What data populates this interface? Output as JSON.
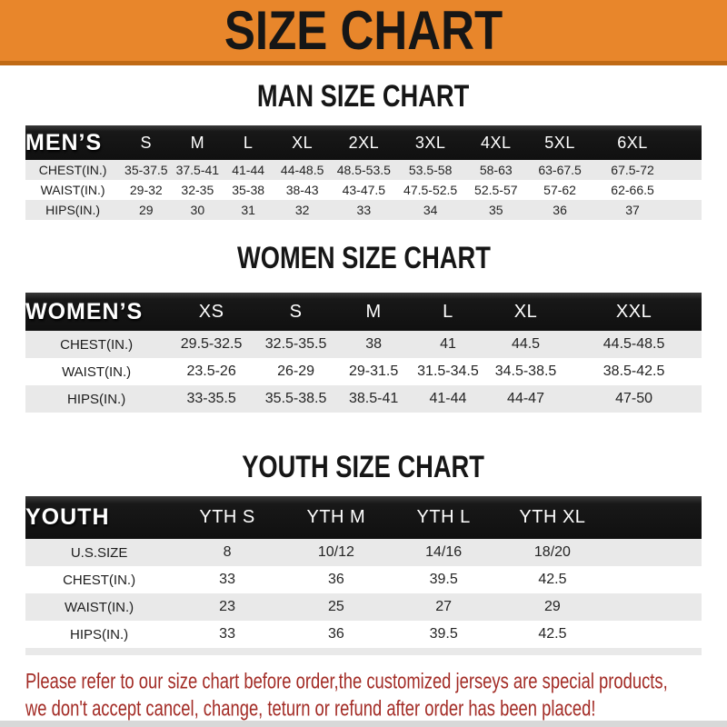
{
  "banner": {
    "title": "SIZE CHART"
  },
  "sections": [
    {
      "heading": "MAN SIZE CHART",
      "table": {
        "header_label": "MEN’S",
        "columns": [
          "S",
          "M",
          "L",
          "XL",
          "2XL",
          "3XL",
          "4XL",
          "5XL",
          "6XL"
        ],
        "rows": [
          {
            "label": "CHEST(IN.)",
            "values": [
              "35-37.5",
              "37.5-41",
              "41-44",
              "44-48.5",
              "48.5-53.5",
              "53.5-58",
              "58-63",
              "63-67.5",
              "67.5-72"
            ]
          },
          {
            "label": "WAIST(IN.)",
            "values": [
              "29-32",
              "32-35",
              "35-38",
              "38-43",
              "43-47.5",
              "47.5-52.5",
              "52.5-57",
              "57-62",
              "62-66.5"
            ]
          },
          {
            "label": "HIPS(IN.)",
            "values": [
              "29",
              "30",
              "31",
              "32",
              "33",
              "34",
              "35",
              "36",
              "37"
            ]
          }
        ]
      }
    },
    {
      "heading": "WOMEN SIZE CHART",
      "table": {
        "header_label": "WOMEN’S",
        "columns": [
          "XS",
          "S",
          "M",
          "L",
          "XL",
          "XXL"
        ],
        "rows": [
          {
            "label": "CHEST(IN.)",
            "values": [
              "29.5-32.5",
              "32.5-35.5",
              "38",
              "41",
              "44.5",
              "44.5-48.5"
            ]
          },
          {
            "label": "WAIST(IN.)",
            "values": [
              "23.5-26",
              "26-29",
              "29-31.5",
              "31.5-34.5",
              "34.5-38.5",
              "38.5-42.5"
            ]
          },
          {
            "label": "HIPS(IN.)",
            "values": [
              "33-35.5",
              "35.5-38.5",
              "38.5-41",
              "41-44",
              "44-47",
              "47-50"
            ]
          }
        ]
      }
    },
    {
      "heading": "YOUTH SIZE CHART",
      "table": {
        "header_label": "YOUTH",
        "columns": [
          "YTH S",
          "YTH M",
          "YTH L",
          "YTH XL"
        ],
        "rows": [
          {
            "label": "U.S.SIZE",
            "values": [
              "8",
              "10/12",
              "14/16",
              "18/20"
            ]
          },
          {
            "label": "CHEST(IN.)",
            "values": [
              "33",
              "36",
              "39.5",
              "42.5"
            ]
          },
          {
            "label": "WAIST(IN.)",
            "values": [
              "23",
              "25",
              "27",
              "29"
            ]
          },
          {
            "label": "HIPS(IN.)",
            "values": [
              "33",
              "36",
              "39.5",
              "42.5"
            ]
          }
        ]
      }
    }
  ],
  "footer": {
    "line1": "Please refer to our size chart before order,the customized jerseys are special products,",
    "line2": "we don't accept cancel, change, teturn or refund after order has been placed!"
  },
  "colors": {
    "banner_bg": "#E8862B",
    "banner_edge": "#C06A15",
    "band_bg": "#161616",
    "band_text": "#FFFFFF",
    "row_alt_bg": "#E9E9E9",
    "footer_text": "#A32C26"
  }
}
